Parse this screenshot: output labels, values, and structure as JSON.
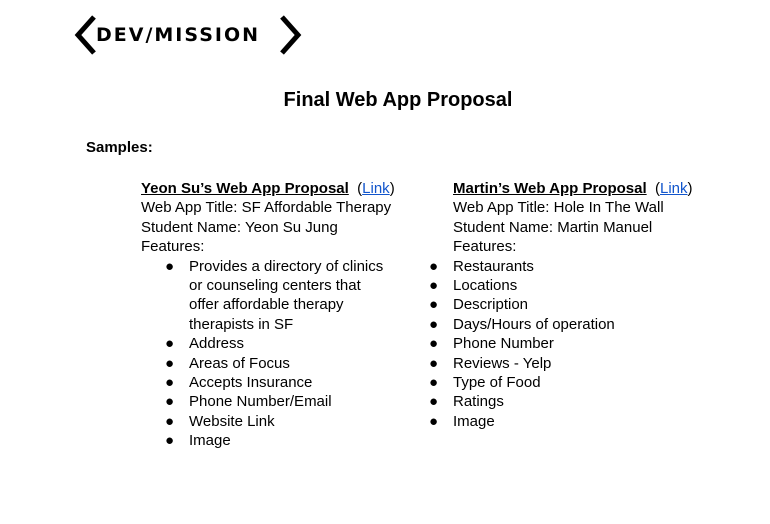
{
  "logo": {
    "text": "DEV/MISSION"
  },
  "title": "Final Web App Proposal",
  "samples_label": "Samples:",
  "samples": [
    {
      "heading": "Yeon Su’s Web App Proposal",
      "link_open": "(",
      "link_text": "Link",
      "link_close": ")",
      "app_title": "Web App Title: SF Affordable Therapy",
      "student_name": "Student Name: Yeon Su Jung",
      "features_label": "Features:",
      "features": [
        "Provides a directory of clinics or counseling centers that offer affordable therapy therapists in SF",
        "Address",
        "Areas of Focus",
        "Accepts Insurance",
        "Phone Number/Email",
        "Website Link",
        "Image"
      ]
    },
    {
      "heading": "Martin’s Web App Proposal",
      "link_open": "(",
      "link_text": "Link",
      "link_close": ")",
      "app_title": "Web App Title: Hole In The Wall",
      "student_name": "Student Name: Martin Manuel",
      "features_label": "Features:",
      "features": [
        "Restaurants",
        "Locations",
        "Description",
        "Days/Hours of operation",
        "Phone Number",
        "Reviews - Yelp",
        "Type of Food",
        "Ratings",
        "Image"
      ]
    }
  ],
  "bullet_glyph": "●"
}
